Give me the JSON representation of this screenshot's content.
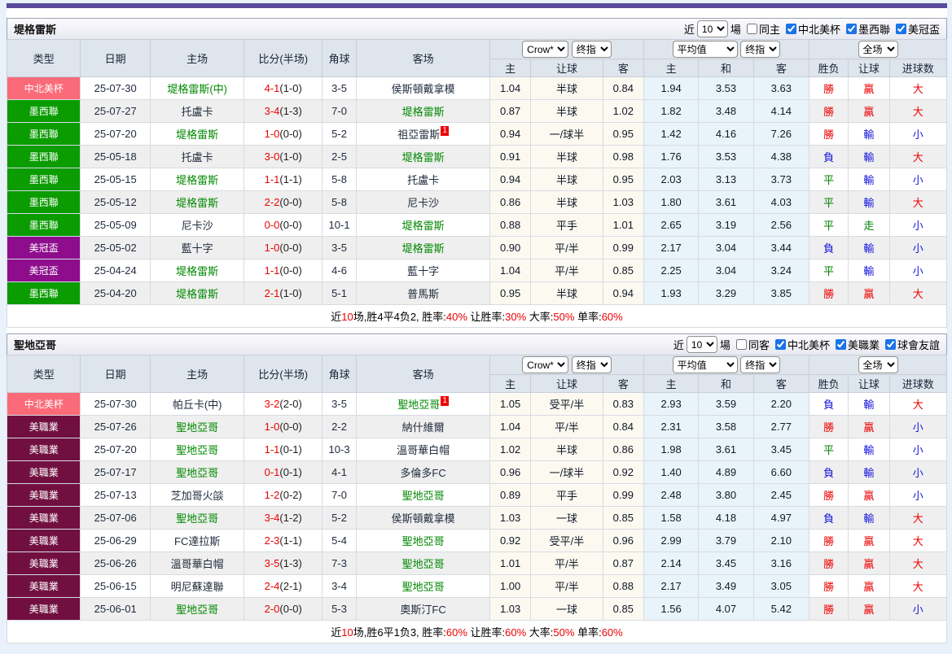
{
  "accent": {
    "topbar_color": "#5b4a9b",
    "checkbox_color": "#1a73e8"
  },
  "controls": {
    "near": "近",
    "games": "場"
  },
  "columns": {
    "left": [
      "类型",
      "日期",
      "主场",
      "比分(半场)",
      "角球",
      "客场"
    ],
    "sub": [
      "主",
      "让球",
      "客",
      "主",
      "和",
      "客",
      "胜负",
      "让球",
      "进球数"
    ]
  },
  "type_colors": {
    "中北美杯": "#fb6a78",
    "墨西聯": "#0a9c00",
    "美冠盃": "#8d0d8d",
    "美職業": "#711040"
  },
  "tables": [
    {
      "title": "堤格雷斯",
      "near_value": "10",
      "same_label": "同主",
      "same_checked": false,
      "leagues": [
        "中北美杯",
        "墨西聯",
        "美冠盃"
      ],
      "selectors": {
        "book": "Crow*",
        "final1": "终指",
        "avg": "平均值",
        "final2": "终指",
        "scope": "全场"
      },
      "rows": [
        {
          "type": "中北美杯",
          "date": "25-07-30",
          "home": "堤格雷斯(中)",
          "homeHl": true,
          "homeBadge": "",
          "score": "4-1",
          "half": "(1-0)",
          "corner": "3-5",
          "away": "侯斯頓戴拿模",
          "awayHl": false,
          "awayBadge": "",
          "hcpHome": "1.04",
          "hcpLine": "半球",
          "hcpAway": "0.84",
          "avgHome": "1.94",
          "avgDraw": "3.53",
          "avgAway": "3.63",
          "res": [
            "勝",
            "贏",
            "大"
          ]
        },
        {
          "type": "墨西聯",
          "date": "25-07-27",
          "home": "托盧卡",
          "homeHl": false,
          "homeBadge": "",
          "score": "3-4",
          "half": "(1-3)",
          "corner": "7-0",
          "away": "堤格雷斯",
          "awayHl": true,
          "awayBadge": "",
          "hcpHome": "0.87",
          "hcpLine": "半球",
          "hcpAway": "1.02",
          "avgHome": "1.82",
          "avgDraw": "3.48",
          "avgAway": "4.14",
          "res": [
            "勝",
            "贏",
            "大"
          ]
        },
        {
          "type": "墨西聯",
          "date": "25-07-20",
          "home": "堤格雷斯",
          "homeHl": true,
          "homeBadge": "",
          "score": "1-0",
          "half": "(0-0)",
          "corner": "5-2",
          "away": "祖亞雷斯",
          "awayHl": false,
          "awayBadge": "1",
          "hcpHome": "0.94",
          "hcpLine": "一/球半",
          "hcpAway": "0.95",
          "avgHome": "1.42",
          "avgDraw": "4.16",
          "avgAway": "7.26",
          "res": [
            "勝",
            "輸",
            "小"
          ]
        },
        {
          "type": "墨西聯",
          "date": "25-05-18",
          "home": "托盧卡",
          "homeHl": false,
          "homeBadge": "",
          "score": "3-0",
          "half": "(1-0)",
          "corner": "2-5",
          "away": "堤格雷斯",
          "awayHl": true,
          "awayBadge": "",
          "hcpHome": "0.91",
          "hcpLine": "半球",
          "hcpAway": "0.98",
          "avgHome": "1.76",
          "avgDraw": "3.53",
          "avgAway": "4.38",
          "res": [
            "負",
            "輸",
            "大"
          ]
        },
        {
          "type": "墨西聯",
          "date": "25-05-15",
          "home": "堤格雷斯",
          "homeHl": true,
          "homeBadge": "",
          "score": "1-1",
          "half": "(1-1)",
          "corner": "5-8",
          "away": "托盧卡",
          "awayHl": false,
          "awayBadge": "",
          "hcpHome": "0.94",
          "hcpLine": "半球",
          "hcpAway": "0.95",
          "avgHome": "2.03",
          "avgDraw": "3.13",
          "avgAway": "3.73",
          "res": [
            "平",
            "輸",
            "小"
          ]
        },
        {
          "type": "墨西聯",
          "date": "25-05-12",
          "home": "堤格雷斯",
          "homeHl": true,
          "homeBadge": "",
          "score": "2-2",
          "half": "(0-0)",
          "corner": "5-8",
          "away": "尼卡沙",
          "awayHl": false,
          "awayBadge": "",
          "hcpHome": "0.86",
          "hcpLine": "半球",
          "hcpAway": "1.03",
          "avgHome": "1.80",
          "avgDraw": "3.61",
          "avgAway": "4.03",
          "res": [
            "平",
            "輸",
            "大"
          ]
        },
        {
          "type": "墨西聯",
          "date": "25-05-09",
          "home": "尼卡沙",
          "homeHl": false,
          "homeBadge": "",
          "score": "0-0",
          "half": "(0-0)",
          "corner": "10-1",
          "away": "堤格雷斯",
          "awayHl": true,
          "awayBadge": "",
          "hcpHome": "0.88",
          "hcpLine": "平手",
          "hcpAway": "1.01",
          "avgHome": "2.65",
          "avgDraw": "3.19",
          "avgAway": "2.56",
          "res": [
            "平",
            "走",
            "小"
          ]
        },
        {
          "type": "美冠盃",
          "date": "25-05-02",
          "home": "藍十字",
          "homeHl": false,
          "homeBadge": "",
          "score": "1-0",
          "half": "(0-0)",
          "corner": "3-5",
          "away": "堤格雷斯",
          "awayHl": true,
          "awayBadge": "",
          "hcpHome": "0.90",
          "hcpLine": "平/半",
          "hcpAway": "0.99",
          "avgHome": "2.17",
          "avgDraw": "3.04",
          "avgAway": "3.44",
          "res": [
            "負",
            "輸",
            "小"
          ]
        },
        {
          "type": "美冠盃",
          "date": "25-04-24",
          "home": "堤格雷斯",
          "homeHl": true,
          "homeBadge": "",
          "score": "1-1",
          "half": "(0-0)",
          "corner": "4-6",
          "away": "藍十字",
          "awayHl": false,
          "awayBadge": "",
          "hcpHome": "1.04",
          "hcpLine": "平/半",
          "hcpAway": "0.85",
          "avgHome": "2.25",
          "avgDraw": "3.04",
          "avgAway": "3.24",
          "res": [
            "平",
            "輸",
            "小"
          ]
        },
        {
          "type": "墨西聯",
          "date": "25-04-20",
          "home": "堤格雷斯",
          "homeHl": true,
          "homeBadge": "",
          "score": "2-1",
          "half": "(1-0)",
          "corner": "5-1",
          "away": "普馬斯",
          "awayHl": false,
          "awayBadge": "",
          "hcpHome": "0.95",
          "hcpLine": "半球",
          "hcpAway": "0.94",
          "avgHome": "1.93",
          "avgDraw": "3.29",
          "avgAway": "3.85",
          "res": [
            "勝",
            "贏",
            "大"
          ]
        }
      ],
      "summary": [
        "近",
        "10",
        "场,胜4平4负2, 胜率:",
        "40%",
        " 让胜率:",
        "30%",
        " 大率:",
        "50%",
        " 单率:",
        "60%"
      ]
    },
    {
      "title": "聖地亞哥",
      "near_value": "10",
      "same_label": "同客",
      "same_checked": false,
      "leagues": [
        "中北美杯",
        "美職業",
        "球會友誼"
      ],
      "selectors": {
        "book": "Crow*",
        "final1": "终指",
        "avg": "平均值",
        "final2": "终指",
        "scope": "全场"
      },
      "rows": [
        {
          "type": "中北美杯",
          "date": "25-07-30",
          "home": "帕丘卡(中)",
          "homeHl": false,
          "homeBadge": "",
          "score": "3-2",
          "half": "(2-0)",
          "corner": "3-5",
          "away": "聖地亞哥",
          "awayHl": true,
          "awayBadge": "1",
          "hcpHome": "1.05",
          "hcpLine": "受平/半",
          "hcpAway": "0.83",
          "avgHome": "2.93",
          "avgDraw": "3.59",
          "avgAway": "2.20",
          "res": [
            "負",
            "輸",
            "大"
          ]
        },
        {
          "type": "美職業",
          "date": "25-07-26",
          "home": "聖地亞哥",
          "homeHl": true,
          "homeBadge": "",
          "score": "1-0",
          "half": "(0-0)",
          "corner": "2-2",
          "away": "納什維爾",
          "awayHl": false,
          "awayBadge": "",
          "hcpHome": "1.04",
          "hcpLine": "平/半",
          "hcpAway": "0.84",
          "avgHome": "2.31",
          "avgDraw": "3.58",
          "avgAway": "2.77",
          "res": [
            "勝",
            "贏",
            "小"
          ]
        },
        {
          "type": "美職業",
          "date": "25-07-20",
          "home": "聖地亞哥",
          "homeHl": true,
          "homeBadge": "",
          "score": "1-1",
          "half": "(0-1)",
          "corner": "10-3",
          "away": "溫哥華白帽",
          "awayHl": false,
          "awayBadge": "",
          "hcpHome": "1.02",
          "hcpLine": "半球",
          "hcpAway": "0.86",
          "avgHome": "1.98",
          "avgDraw": "3.61",
          "avgAway": "3.45",
          "res": [
            "平",
            "輸",
            "小"
          ]
        },
        {
          "type": "美職業",
          "date": "25-07-17",
          "home": "聖地亞哥",
          "homeHl": true,
          "homeBadge": "",
          "score": "0-1",
          "half": "(0-1)",
          "corner": "4-1",
          "away": "多倫多FC",
          "awayHl": false,
          "awayBadge": "",
          "hcpHome": "0.96",
          "hcpLine": "一/球半",
          "hcpAway": "0.92",
          "avgHome": "1.40",
          "avgDraw": "4.89",
          "avgAway": "6.60",
          "res": [
            "負",
            "輸",
            "小"
          ]
        },
        {
          "type": "美職業",
          "date": "25-07-13",
          "home": "芝加哥火燄",
          "homeHl": false,
          "homeBadge": "",
          "score": "1-2",
          "half": "(0-2)",
          "corner": "7-0",
          "away": "聖地亞哥",
          "awayHl": true,
          "awayBadge": "",
          "hcpHome": "0.89",
          "hcpLine": "平手",
          "hcpAway": "0.99",
          "avgHome": "2.48",
          "avgDraw": "3.80",
          "avgAway": "2.45",
          "res": [
            "勝",
            "贏",
            "小"
          ]
        },
        {
          "type": "美職業",
          "date": "25-07-06",
          "home": "聖地亞哥",
          "homeHl": true,
          "homeBadge": "",
          "score": "3-4",
          "half": "(1-2)",
          "corner": "5-2",
          "away": "侯斯頓戴拿模",
          "awayHl": false,
          "awayBadge": "",
          "hcpHome": "1.03",
          "hcpLine": "一球",
          "hcpAway": "0.85",
          "avgHome": "1.58",
          "avgDraw": "4.18",
          "avgAway": "4.97",
          "res": [
            "負",
            "輸",
            "大"
          ]
        },
        {
          "type": "美職業",
          "date": "25-06-29",
          "home": "FC達拉斯",
          "homeHl": false,
          "homeBadge": "",
          "score": "2-3",
          "half": "(1-1)",
          "corner": "5-4",
          "away": "聖地亞哥",
          "awayHl": true,
          "awayBadge": "",
          "hcpHome": "0.92",
          "hcpLine": "受平/半",
          "hcpAway": "0.96",
          "avgHome": "2.99",
          "avgDraw": "3.79",
          "avgAway": "2.10",
          "res": [
            "勝",
            "贏",
            "大"
          ]
        },
        {
          "type": "美職業",
          "date": "25-06-26",
          "home": "溫哥華白帽",
          "homeHl": false,
          "homeBadge": "",
          "score": "3-5",
          "half": "(1-3)",
          "corner": "7-3",
          "away": "聖地亞哥",
          "awayHl": true,
          "awayBadge": "",
          "hcpHome": "1.01",
          "hcpLine": "平/半",
          "hcpAway": "0.87",
          "avgHome": "2.14",
          "avgDraw": "3.45",
          "avgAway": "3.16",
          "res": [
            "勝",
            "贏",
            "大"
          ]
        },
        {
          "type": "美職業",
          "date": "25-06-15",
          "home": "明尼蘇達聯",
          "homeHl": false,
          "homeBadge": "",
          "score": "2-4",
          "half": "(2-1)",
          "corner": "3-4",
          "away": "聖地亞哥",
          "awayHl": true,
          "awayBadge": "",
          "hcpHome": "1.00",
          "hcpLine": "平/半",
          "hcpAway": "0.88",
          "avgHome": "2.17",
          "avgDraw": "3.49",
          "avgAway": "3.05",
          "res": [
            "勝",
            "贏",
            "大"
          ]
        },
        {
          "type": "美職業",
          "date": "25-06-01",
          "home": "聖地亞哥",
          "homeHl": true,
          "homeBadge": "",
          "score": "2-0",
          "half": "(0-0)",
          "corner": "5-3",
          "away": "奧斯汀FC",
          "awayHl": false,
          "awayBadge": "",
          "hcpHome": "1.03",
          "hcpLine": "一球",
          "hcpAway": "0.85",
          "avgHome": "1.56",
          "avgDraw": "4.07",
          "avgAway": "5.42",
          "res": [
            "勝",
            "贏",
            "小"
          ]
        }
      ],
      "summary": [
        "近",
        "10",
        "场,胜6平1负3, 胜率:",
        "60%",
        " 让胜率:",
        "60%",
        " 大率:",
        "50%",
        " 单率:",
        "60%"
      ]
    }
  ]
}
